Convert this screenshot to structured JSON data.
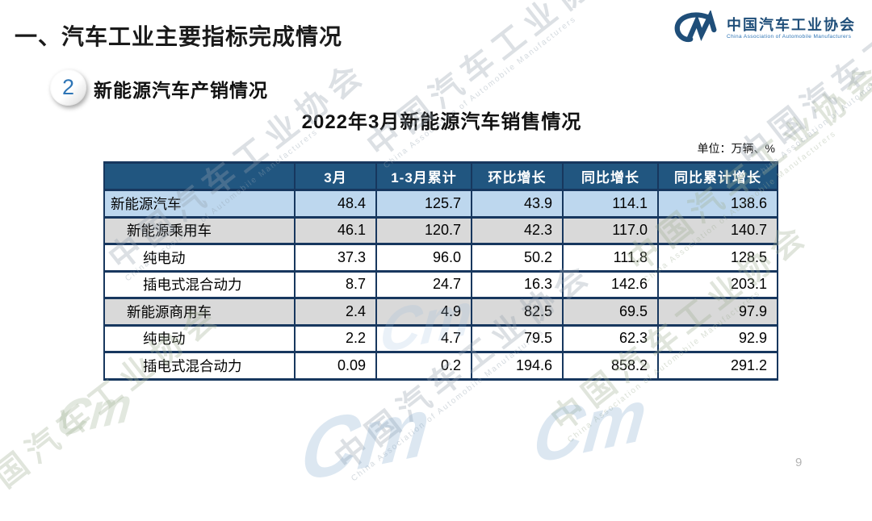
{
  "slide": {
    "main_title": "一、汽车工业主要指标完成情况",
    "section_badge": "2",
    "section_title": "新能源汽车产销情况",
    "table_title": "2022年3月新能源汽车销售情况",
    "unit_label": "单位：万辆、%",
    "page_number": "9"
  },
  "logo": {
    "mark": "CM",
    "name_cn": "中国汽车工业协会",
    "name_en": "China Association of Automobile Manufacturers"
  },
  "watermark": {
    "text_cn": "中国汽车工业协会",
    "text_en": "China Association of Automobile Manufacturers",
    "mark": "Cm"
  },
  "colors": {
    "header_bg": "#215680",
    "row_highlight_blue": "#BDD7EE",
    "row_gray": "#D9D9D9",
    "table_border": "#17375E",
    "logo_blue": "#1F4E79",
    "badge_number_blue": "#2E75B6"
  },
  "table": {
    "columns": [
      "",
      "3月",
      "1-3月累计",
      "环比增长",
      "同比增长",
      "同比累计增长"
    ],
    "rows": [
      {
        "label": "新能源汽车",
        "indent": 0,
        "bg": "blue",
        "values": [
          "48.4",
          "125.7",
          "43.9",
          "114.1",
          "138.6"
        ]
      },
      {
        "label": "新能源乘用车",
        "indent": 1,
        "bg": "gray",
        "values": [
          "46.1",
          "120.7",
          "42.3",
          "117.0",
          "140.7"
        ]
      },
      {
        "label": "纯电动",
        "indent": 2,
        "bg": "white",
        "values": [
          "37.3",
          "96.0",
          "50.2",
          "111.8",
          "128.5"
        ]
      },
      {
        "label": "插电式混合动力",
        "indent": 2,
        "bg": "white",
        "values": [
          "8.7",
          "24.7",
          "16.3",
          "142.6",
          "203.1"
        ]
      },
      {
        "label": "新能源商用车",
        "indent": 1,
        "bg": "gray",
        "values": [
          "2.4",
          "4.9",
          "82.5",
          "69.5",
          "97.9"
        ]
      },
      {
        "label": "纯电动",
        "indent": 2,
        "bg": "white",
        "values": [
          "2.2",
          "4.7",
          "79.5",
          "62.3",
          "92.9"
        ]
      },
      {
        "label": "插电式混合动力",
        "indent": 2,
        "bg": "white",
        "values": [
          "0.09",
          "0.2",
          "194.6",
          "858.2",
          "291.2"
        ]
      }
    ]
  }
}
